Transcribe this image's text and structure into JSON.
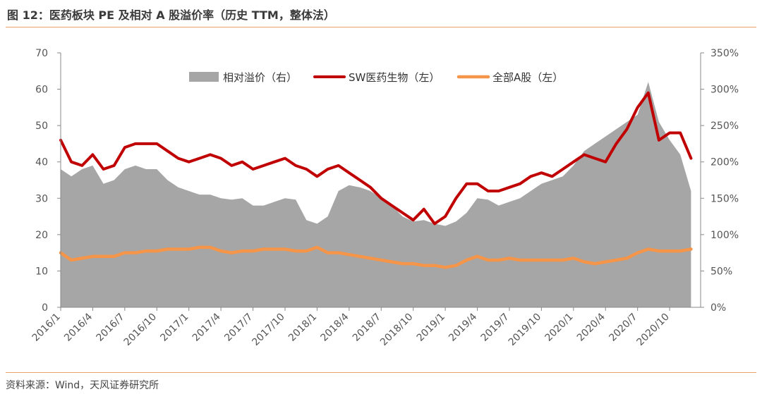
{
  "header": {
    "title": "图 12：医药板块 PE 及相对 A 股溢价率（历史 TTM，整体法）"
  },
  "footer": {
    "source": "资料来源：Wind，天风证券研究所"
  },
  "colors": {
    "premium": "#a6a6a6",
    "sw_pharma": "#c00000",
    "all_a": "#f4954a",
    "rule": "#e8a36a",
    "axis": "#888888"
  },
  "chart_data": {
    "type": "area",
    "title": "",
    "legend": {
      "position": "top"
    },
    "grid": false,
    "x_labels": [
      "2016/1",
      "2016/4",
      "2016/7",
      "2016/10",
      "2017/1",
      "2017/4",
      "2017/7",
      "2017/10",
      "2018/1",
      "2018/4",
      "2018/7",
      "2018/10",
      "2019/1",
      "2019/4",
      "2019/7",
      "2019/10",
      "2020/1",
      "2020/4",
      "2020/7",
      "2020/10"
    ],
    "y_left": {
      "lim": [
        0,
        70
      ],
      "ticks": [
        0,
        10,
        20,
        30,
        40,
        50,
        60,
        70
      ]
    },
    "y_right": {
      "lim": [
        0,
        350
      ],
      "ticks": [
        "0%",
        "50%",
        "100%",
        "150%",
        "200%",
        "250%",
        "300%",
        "350%"
      ]
    },
    "series": [
      {
        "name": "相对溢价（右）",
        "type": "area",
        "axis": "right",
        "x": [
          "2016/1",
          "2016/2",
          "2016/3",
          "2016/4",
          "2016/5",
          "2016/6",
          "2016/7",
          "2016/8",
          "2016/9",
          "2016/10",
          "2016/11",
          "2016/12",
          "2017/1",
          "2017/2",
          "2017/3",
          "2017/4",
          "2017/5",
          "2017/6",
          "2017/7",
          "2017/8",
          "2017/9",
          "2017/10",
          "2017/11",
          "2017/12",
          "2018/1",
          "2018/2",
          "2018/3",
          "2018/4",
          "2018/5",
          "2018/6",
          "2018/7",
          "2018/8",
          "2018/9",
          "2018/10",
          "2018/11",
          "2018/12",
          "2019/1",
          "2019/2",
          "2019/3",
          "2019/4",
          "2019/5",
          "2019/6",
          "2019/7",
          "2019/8",
          "2019/9",
          "2019/10",
          "2019/11",
          "2019/12",
          "2020/1",
          "2020/2",
          "2020/3",
          "2020/4",
          "2020/5",
          "2020/6",
          "2020/7",
          "2020/8",
          "2020/9",
          "2020/10",
          "2020/11",
          "2020/12"
        ],
        "values": [
          190,
          180,
          190,
          195,
          170,
          175,
          190,
          195,
          190,
          190,
          175,
          165,
          160,
          155,
          155,
          150,
          148,
          150,
          140,
          140,
          145,
          150,
          148,
          120,
          115,
          125,
          160,
          168,
          165,
          160,
          150,
          140,
          125,
          118,
          120,
          115,
          112,
          118,
          130,
          150,
          148,
          140,
          145,
          150,
          160,
          170,
          175,
          180,
          195,
          215,
          225,
          235,
          245,
          255,
          265,
          310,
          255,
          230,
          210,
          160
        ]
      },
      {
        "name": "SW医药生物（左）",
        "type": "line",
        "axis": "left",
        "x": [
          "2016/1",
          "2016/2",
          "2016/3",
          "2016/4",
          "2016/5",
          "2016/6",
          "2016/7",
          "2016/8",
          "2016/9",
          "2016/10",
          "2016/11",
          "2016/12",
          "2017/1",
          "2017/2",
          "2017/3",
          "2017/4",
          "2017/5",
          "2017/6",
          "2017/7",
          "2017/8",
          "2017/9",
          "2017/10",
          "2017/11",
          "2017/12",
          "2018/1",
          "2018/2",
          "2018/3",
          "2018/4",
          "2018/5",
          "2018/6",
          "2018/7",
          "2018/8",
          "2018/9",
          "2018/10",
          "2018/11",
          "2018/12",
          "2019/1",
          "2019/2",
          "2019/3",
          "2019/4",
          "2019/5",
          "2019/6",
          "2019/7",
          "2019/8",
          "2019/9",
          "2019/10",
          "2019/11",
          "2019/12",
          "2020/1",
          "2020/2",
          "2020/3",
          "2020/4",
          "2020/5",
          "2020/6",
          "2020/7",
          "2020/8",
          "2020/9",
          "2020/10",
          "2020/11",
          "2020/12"
        ],
        "values": [
          46,
          40,
          39,
          42,
          38,
          39,
          44,
          45,
          45,
          45,
          43,
          41,
          40,
          41,
          42,
          41,
          39,
          40,
          38,
          39,
          40,
          41,
          39,
          38,
          36,
          38,
          39,
          37,
          35,
          33,
          30,
          28,
          26,
          24,
          27,
          23,
          25,
          30,
          34,
          34,
          32,
          32,
          33,
          34,
          36,
          37,
          36,
          38,
          40,
          42,
          41,
          40,
          45,
          49,
          55,
          59,
          46,
          48,
          48,
          41
        ]
      },
      {
        "name": "全部A股（左）",
        "type": "line",
        "axis": "left",
        "x": [
          "2016/1",
          "2016/2",
          "2016/3",
          "2016/4",
          "2016/5",
          "2016/6",
          "2016/7",
          "2016/8",
          "2016/9",
          "2016/10",
          "2016/11",
          "2016/12",
          "2017/1",
          "2017/2",
          "2017/3",
          "2017/4",
          "2017/5",
          "2017/6",
          "2017/7",
          "2017/8",
          "2017/9",
          "2017/10",
          "2017/11",
          "2017/12",
          "2018/1",
          "2018/2",
          "2018/3",
          "2018/4",
          "2018/5",
          "2018/6",
          "2018/7",
          "2018/8",
          "2018/9",
          "2018/10",
          "2018/11",
          "2018/12",
          "2019/1",
          "2019/2",
          "2019/3",
          "2019/4",
          "2019/5",
          "2019/6",
          "2019/7",
          "2019/8",
          "2019/9",
          "2019/10",
          "2019/11",
          "2019/12",
          "2020/1",
          "2020/2",
          "2020/3",
          "2020/4",
          "2020/5",
          "2020/6",
          "2020/7",
          "2020/8",
          "2020/9",
          "2020/10",
          "2020/11",
          "2020/12"
        ],
        "values": [
          15,
          13,
          13.5,
          14,
          14,
          14,
          15,
          15,
          15.5,
          15.5,
          16,
          16,
          16,
          16.5,
          16.5,
          15.5,
          15,
          15.5,
          15.5,
          16,
          16,
          16,
          15.5,
          15.5,
          16.5,
          15,
          15,
          14.5,
          14,
          13.5,
          13,
          12.5,
          12,
          12,
          11.5,
          11.5,
          11,
          11.5,
          13,
          14,
          13,
          13,
          13.5,
          13,
          13,
          13,
          13,
          13,
          13.5,
          12.5,
          12,
          12.5,
          13,
          13.5,
          15,
          16,
          15.5,
          15.5,
          15.5,
          16
        ]
      }
    ]
  }
}
